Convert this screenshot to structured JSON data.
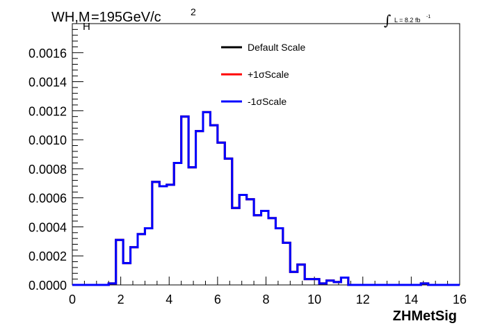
{
  "chart_data": {
    "type": "line",
    "title_main": "WH,M",
    "title_sub": "H",
    "title_rest": "=195GeV/c",
    "title_sup": "2",
    "lumi_label": "L = 8.2 fb",
    "lumi_sup": "-1",
    "xlabel": "ZHMetSig",
    "xlim": [
      0,
      16
    ],
    "ylim": [
      0,
      0.0018
    ],
    "xticks": [
      "0",
      "2",
      "4",
      "6",
      "8",
      "10",
      "12",
      "14",
      "16"
    ],
    "yticks": [
      "0.0000",
      "0.0002",
      "0.0004",
      "0.0006",
      "0.0008",
      "0.0010",
      "0.0012",
      "0.0014",
      "0.0016"
    ],
    "bin_edges": [
      0,
      0.3,
      0.6,
      0.9,
      1.2,
      1.5,
      1.8,
      2.1,
      2.4,
      2.7,
      3.0,
      3.3,
      3.6,
      3.9,
      4.2,
      4.5,
      4.8,
      5.1,
      5.4,
      5.7,
      6.0,
      6.3,
      6.6,
      6.9,
      7.2,
      7.5,
      7.8,
      8.1,
      8.4,
      8.7,
      9.0,
      9.3,
      9.6,
      9.9,
      10.2,
      10.5,
      10.8,
      11.1,
      11.4,
      11.7,
      12.0,
      12.3,
      12.6,
      12.9,
      13.2,
      13.5,
      13.8,
      14.1,
      14.4,
      14.7,
      15.0,
      15.3,
      15.6,
      15.9,
      16.0
    ],
    "series": [
      {
        "name": "Default Scale",
        "color": "#000000",
        "values": [
          0,
          0,
          0,
          0,
          0,
          1e-05,
          0.00031,
          0.00015,
          0.00026,
          0.00035,
          0.00039,
          0.00071,
          0.00068,
          0.00069,
          0.00084,
          0.00116,
          0.00081,
          0.00106,
          0.00119,
          0.0011,
          0.00098,
          0.00087,
          0.00053,
          0.00062,
          0.00059,
          0.00048,
          0.00051,
          0.00046,
          0.00039,
          0.00029,
          9e-05,
          0.00014,
          4e-05,
          4e-05,
          1e-05,
          3e-05,
          2e-05,
          5e-05,
          0,
          0,
          0,
          0,
          0,
          0,
          0,
          0,
          0,
          0,
          1e-05,
          0,
          0,
          0,
          0,
          0
        ]
      },
      {
        "name": "+1σScale",
        "color": "#ff0000",
        "values": [
          0,
          0,
          0,
          0,
          0,
          1e-05,
          0.00031,
          0.00015,
          0.00026,
          0.00035,
          0.00039,
          0.00071,
          0.00068,
          0.00069,
          0.00084,
          0.00116,
          0.00081,
          0.00106,
          0.00119,
          0.0011,
          0.00098,
          0.00087,
          0.00053,
          0.00062,
          0.00059,
          0.00048,
          0.00051,
          0.00046,
          0.00039,
          0.00029,
          9e-05,
          0.00014,
          4e-05,
          4e-05,
          1e-05,
          3e-05,
          2e-05,
          5e-05,
          0,
          0,
          0,
          0,
          0,
          0,
          0,
          0,
          0,
          0,
          1e-05,
          0,
          0,
          0,
          0,
          0
        ]
      },
      {
        "name": "-1σScale",
        "color": "#0000ff",
        "values": [
          0,
          0,
          0,
          0,
          0,
          1e-05,
          0.00031,
          0.00015,
          0.00026,
          0.00035,
          0.00039,
          0.00071,
          0.00068,
          0.00069,
          0.00084,
          0.00116,
          0.00081,
          0.00106,
          0.00119,
          0.0011,
          0.00098,
          0.00087,
          0.00053,
          0.00062,
          0.00059,
          0.00048,
          0.00051,
          0.00046,
          0.00039,
          0.00029,
          9e-05,
          0.00014,
          4e-05,
          4e-05,
          1e-05,
          3e-05,
          2e-05,
          5e-05,
          0,
          0,
          0,
          0,
          0,
          0,
          0,
          0,
          0,
          0,
          1e-05,
          0,
          0,
          0,
          0,
          0
        ]
      }
    ],
    "legend_position": "top-center",
    "grid": false
  }
}
